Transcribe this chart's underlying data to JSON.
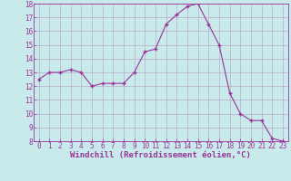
{
  "x": [
    0,
    1,
    2,
    3,
    4,
    5,
    6,
    7,
    8,
    9,
    10,
    11,
    12,
    13,
    14,
    15,
    16,
    17,
    18,
    19,
    20,
    21,
    22,
    23
  ],
  "y": [
    12.5,
    13.0,
    13.0,
    13.2,
    13.0,
    12.0,
    12.2,
    12.2,
    12.2,
    13.0,
    14.5,
    14.7,
    16.5,
    17.2,
    17.8,
    18.0,
    16.5,
    15.0,
    11.5,
    10.0,
    9.5,
    9.5,
    8.2,
    8.0
  ],
  "line_color": "#993399",
  "marker_color": "#993399",
  "bg_color": "#c8eaea",
  "grid_color": "#aa66aa",
  "xlabel": "Windchill (Refroidissement éolien,°C)",
  "xlim": [
    -0.5,
    23.5
  ],
  "ylim": [
    8,
    18
  ],
  "yticks": [
    8,
    9,
    10,
    11,
    12,
    13,
    14,
    15,
    16,
    17,
    18
  ],
  "xticks": [
    0,
    1,
    2,
    3,
    4,
    5,
    6,
    7,
    8,
    9,
    10,
    11,
    12,
    13,
    14,
    15,
    16,
    17,
    18,
    19,
    20,
    21,
    22,
    23
  ],
  "tick_fontsize": 5.5,
  "xlabel_fontsize": 6.5
}
